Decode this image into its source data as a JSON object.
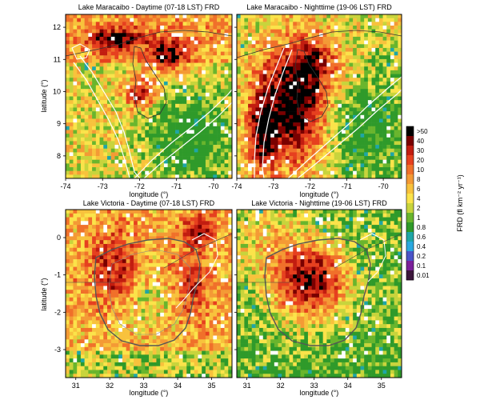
{
  "chart_data": [
    {
      "type": "heatmap",
      "title": "Lake Maracaibo - Daytime (07-18 LST) FRD",
      "xlabel": "longitude (°)",
      "ylabel": "latitude (°)",
      "xlim": [
        -74,
        -69.5
      ],
      "ylim": [
        7.3,
        12.4
      ],
      "xticks": [
        "-74",
        "-73",
        "-72",
        "-71",
        "-70"
      ],
      "yticks": [
        "8",
        "9",
        "10",
        "11",
        "12"
      ],
      "xtick_values": [
        -74,
        -73,
        -72,
        -71,
        -70
      ],
      "ytick_values": [
        8,
        9,
        10,
        11,
        12
      ],
      "show_x_labels": true,
      "show_y_labels": true
    },
    {
      "type": "heatmap",
      "title": "Lake Maracaibo - Nighttime (19-06 LST) FRD",
      "xlabel": "longitude (°)",
      "ylabel": "",
      "xlim": [
        -74,
        -69.5
      ],
      "ylim": [
        7.3,
        12.4
      ],
      "xticks": [
        "-74",
        "-73",
        "-72",
        "-71",
        "-70"
      ],
      "yticks": [
        "8",
        "9",
        "10",
        "11",
        "12"
      ],
      "xtick_values": [
        -74,
        -73,
        -72,
        -71,
        -70
      ],
      "ytick_values": [
        8,
        9,
        10,
        11,
        12
      ],
      "show_x_labels": true,
      "show_y_labels": false
    },
    {
      "type": "heatmap",
      "title": "Lake Victoria - Daytime (07-18 LST) FRD",
      "xlabel": "longitude (°)",
      "ylabel": "latitude (°)",
      "xlim": [
        30.7,
        35.6
      ],
      "ylim": [
        -3.75,
        0.75
      ],
      "xticks": [
        "31",
        "32",
        "33",
        "34",
        "35"
      ],
      "yticks": [
        "0",
        "-1",
        "-2",
        "-3"
      ],
      "xtick_values": [
        31,
        32,
        33,
        34,
        35
      ],
      "ytick_values": [
        0,
        -1,
        -2,
        -3
      ],
      "show_x_labels": true,
      "show_y_labels": true
    },
    {
      "type": "heatmap",
      "title": "Lake Victoria - Nighttime (19-06 LST) FRD",
      "xlabel": "longitude (°)",
      "ylabel": "",
      "xlim": [
        30.7,
        35.6
      ],
      "ylim": [
        -3.75,
        0.75
      ],
      "xticks": [
        "31",
        "32",
        "33",
        "34",
        "35"
      ],
      "yticks": [
        "0",
        "-1",
        "-2",
        "-3"
      ],
      "xtick_values": [
        31,
        32,
        33,
        34,
        35
      ],
      "ytick_values": [
        0,
        -1,
        -2,
        -3
      ],
      "show_x_labels": true,
      "show_y_labels": false
    }
  ],
  "colorbar": {
    "label": "FRD (fl km⁻² yr⁻¹)",
    "levels": [
      ">50",
      "40",
      "30",
      "20",
      "10",
      "8",
      "6",
      "4",
      "2",
      "1",
      "0.8",
      "0.6",
      "0.4",
      "0.2",
      "0.1",
      "0.01"
    ],
    "colors": [
      "#000000",
      "#7a0000",
      "#c21d10",
      "#e6401f",
      "#f0702a",
      "#f49a35",
      "#f8c23c",
      "#fbe34a",
      "#c8d43c",
      "#69b52d",
      "#2f9a2a",
      "#1fa6a6",
      "#2aa8e0",
      "#4a54c8",
      "#7a1f9a",
      "#3c163c"
    ]
  }
}
